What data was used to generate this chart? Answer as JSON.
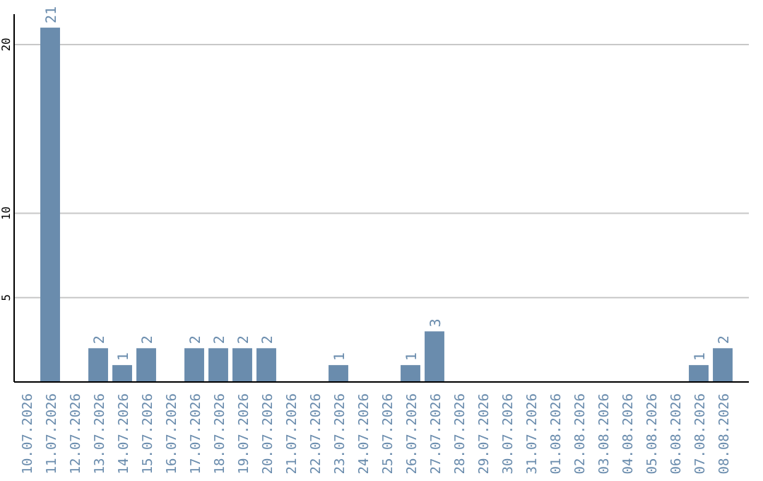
{
  "chart_data": {
    "type": "bar",
    "categories": [
      "10.07.2026",
      "11.07.2026",
      "12.07.2026",
      "13.07.2026",
      "14.07.2026",
      "15.07.2026",
      "16.07.2026",
      "17.07.2026",
      "18.07.2026",
      "19.07.2026",
      "20.07.2026",
      "21.07.2026",
      "22.07.2026",
      "23.07.2026",
      "24.07.2026",
      "25.07.2026",
      "26.07.2026",
      "27.07.2026",
      "28.07.2026",
      "29.07.2026",
      "30.07.2026",
      "31.07.2026",
      "01.08.2026",
      "02.08.2026",
      "03.08.2026",
      "04.08.2026",
      "05.08.2026",
      "06.08.2026",
      "07.08.2026",
      "08.08.2026"
    ],
    "values": [
      0,
      21,
      0,
      2,
      1,
      2,
      0,
      2,
      2,
      2,
      2,
      0,
      0,
      1,
      0,
      0,
      1,
      3,
      0,
      0,
      0,
      0,
      0,
      0,
      0,
      0,
      0,
      0,
      1,
      2
    ],
    "value_labels": [
      null,
      "21",
      null,
      "2",
      "1",
      "2",
      null,
      "2",
      "2",
      "2",
      "2",
      null,
      null,
      "1",
      null,
      null,
      "1",
      "3",
      null,
      null,
      null,
      null,
      null,
      null,
      null,
      null,
      null,
      null,
      "1",
      "2"
    ],
    "color": "#6a8cad",
    "ylim": [
      0,
      21.8
    ],
    "yticks": [
      5,
      10,
      20
    ],
    "grid": "y"
  }
}
